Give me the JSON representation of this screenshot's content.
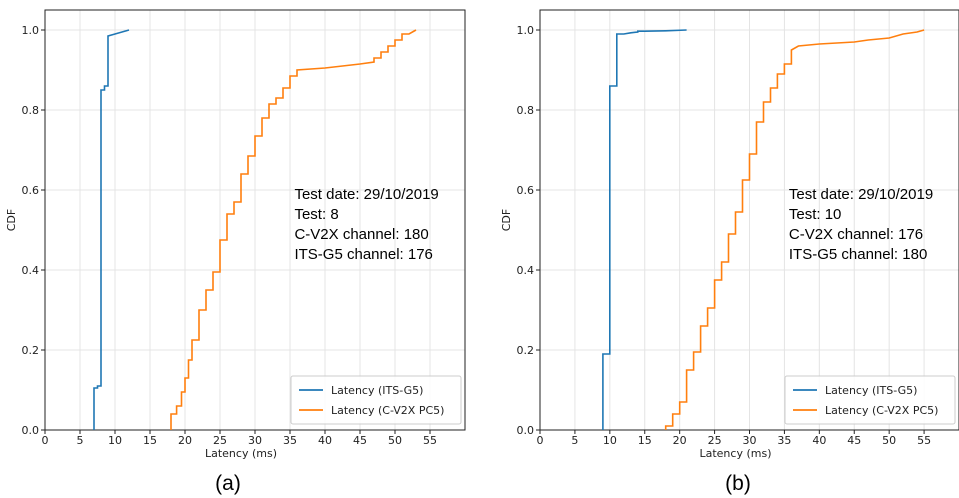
{
  "chart_data": [
    {
      "type": "line",
      "caption": "(a)",
      "xlabel": "Latency (ms)",
      "ylabel": "CDF",
      "xlim": [
        0,
        60
      ],
      "ylim": [
        0,
        1.05
      ],
      "xticks": [
        0,
        5,
        10,
        15,
        20,
        25,
        30,
        35,
        40,
        45,
        50,
        55
      ],
      "yticks": [
        0.0,
        0.2,
        0.4,
        0.6,
        0.8,
        1.0
      ],
      "grid": true,
      "legend_position": "bottom-right",
      "annotations": [
        "Test date:  29/10/2019",
        "Test:  8",
        "C-V2X channel:   180",
        "ITS-G5 channel:   176"
      ],
      "series": [
        {
          "name": "Latency (ITS-G5)",
          "color": "#1f77b4",
          "x": [
            7,
            7,
            7.5,
            7.5,
            8,
            8,
            8.5,
            8.5,
            9,
            9,
            10,
            11,
            12
          ],
          "y": [
            0,
            0.105,
            0.105,
            0.11,
            0.11,
            0.85,
            0.85,
            0.86,
            0.86,
            0.985,
            0.99,
            0.995,
            1.0
          ]
        },
        {
          "name": "Latency (C-V2X PC5)",
          "color": "#ff7f0e",
          "x": [
            18,
            18,
            18.8,
            18.8,
            19.5,
            19.5,
            20,
            20,
            20.5,
            20.5,
            21,
            21,
            22,
            22,
            23,
            23,
            24,
            24,
            25,
            25,
            26,
            26,
            27,
            27,
            28,
            28,
            29,
            29,
            30,
            30,
            31,
            31,
            32,
            32,
            33,
            33,
            34,
            34,
            35,
            35,
            36,
            36,
            40,
            45,
            47,
            47,
            48,
            48,
            49,
            49,
            50,
            50,
            51,
            51,
            52,
            52,
            53
          ],
          "y": [
            0,
            0.04,
            0.04,
            0.06,
            0.06,
            0.095,
            0.095,
            0.13,
            0.13,
            0.175,
            0.175,
            0.225,
            0.225,
            0.3,
            0.3,
            0.35,
            0.35,
            0.395,
            0.395,
            0.475,
            0.475,
            0.54,
            0.54,
            0.57,
            0.57,
            0.64,
            0.64,
            0.685,
            0.685,
            0.735,
            0.735,
            0.78,
            0.78,
            0.815,
            0.815,
            0.83,
            0.83,
            0.855,
            0.855,
            0.885,
            0.885,
            0.9,
            0.905,
            0.915,
            0.92,
            0.93,
            0.93,
            0.945,
            0.945,
            0.96,
            0.96,
            0.975,
            0.975,
            0.99,
            0.99,
            0.99,
            1.0
          ]
        }
      ]
    },
    {
      "type": "line",
      "caption": "(b)",
      "xlabel": "Latency (ms)",
      "ylabel": "CDF",
      "xlim": [
        0,
        60
      ],
      "ylim": [
        0,
        1.05
      ],
      "xticks": [
        0,
        5,
        10,
        15,
        20,
        25,
        30,
        35,
        40,
        45,
        50,
        55
      ],
      "yticks": [
        0.0,
        0.2,
        0.4,
        0.6,
        0.8,
        1.0
      ],
      "grid": true,
      "legend_position": "bottom-right",
      "annotations": [
        "Test date:  29/10/2019",
        "Test:  10",
        "C-V2X channel:   176",
        "ITS-G5 channel:   180"
      ],
      "series": [
        {
          "name": "Latency (ITS-G5)",
          "color": "#1f77b4",
          "x": [
            9,
            9,
            10,
            10,
            11,
            11,
            12,
            13,
            14,
            14,
            15,
            18,
            21
          ],
          "y": [
            0,
            0.19,
            0.19,
            0.86,
            0.86,
            0.99,
            0.99,
            0.993,
            0.995,
            0.997,
            0.997,
            0.998,
            1.0
          ]
        },
        {
          "name": "Latency (C-V2X PC5)",
          "color": "#ff7f0e",
          "x": [
            18,
            18,
            19,
            19,
            20,
            20,
            21,
            21,
            22,
            22,
            23,
            23,
            24,
            24,
            25,
            25,
            26,
            26,
            27,
            27,
            28,
            28,
            29,
            29,
            30,
            30,
            31,
            31,
            32,
            32,
            33,
            33,
            34,
            34,
            35,
            35,
            36,
            36,
            37,
            40,
            45,
            47,
            50,
            52,
            54,
            55
          ],
          "y": [
            0,
            0.01,
            0.01,
            0.04,
            0.04,
            0.07,
            0.07,
            0.15,
            0.15,
            0.195,
            0.195,
            0.26,
            0.26,
            0.305,
            0.305,
            0.375,
            0.375,
            0.42,
            0.42,
            0.49,
            0.49,
            0.545,
            0.545,
            0.625,
            0.625,
            0.69,
            0.69,
            0.77,
            0.77,
            0.82,
            0.82,
            0.855,
            0.855,
            0.89,
            0.89,
            0.915,
            0.915,
            0.95,
            0.96,
            0.965,
            0.97,
            0.975,
            0.98,
            0.99,
            0.995,
            1.0
          ]
        }
      ]
    }
  ]
}
